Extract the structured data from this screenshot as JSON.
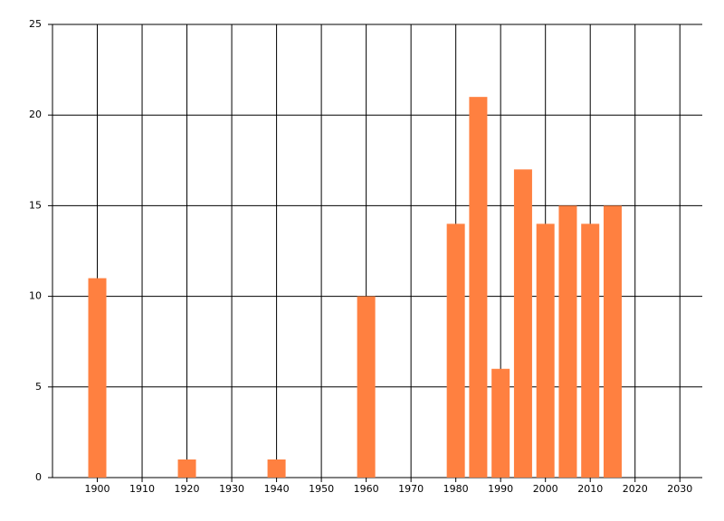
{
  "chart_data": {
    "type": "bar",
    "x": [
      1900,
      1920,
      1940,
      1960,
      1980,
      1985,
      1990,
      1995,
      2000,
      2005,
      2010,
      2015
    ],
    "values": [
      11,
      1,
      1,
      10,
      14,
      21,
      6,
      17,
      14,
      15,
      14,
      15
    ],
    "color": "#ff8040",
    "xlim": [
      1890,
      2035
    ],
    "xticks": [
      1900,
      1910,
      1920,
      1930,
      1940,
      1950,
      1960,
      1970,
      1980,
      1990,
      2000,
      2010,
      2020,
      2030
    ],
    "ylim": [
      0,
      25
    ],
    "yticks": [
      0,
      5,
      10,
      15,
      20,
      25
    ],
    "grid": true
  }
}
